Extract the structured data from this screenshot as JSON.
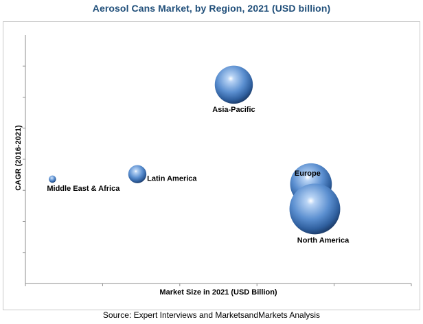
{
  "chart_data": {
    "type": "scatter",
    "title": "Aerosol Cans Market, by Region, 2021 (USD billion)",
    "xlabel": "Market Size in 2021 (USD Billion)",
    "ylabel": "CAGR (2016-2021)",
    "source": "Source: Expert Interviews and MarketsandMarkets Analysis",
    "bubble_color": "#4a7ab8",
    "grid": false,
    "ticks_labeled": false,
    "points": [
      {
        "label": "Asia-Pacific",
        "x": 0.54,
        "y": 0.8,
        "size": 0.21
      },
      {
        "label": "Middle East & Africa",
        "x": 0.07,
        "y": 0.42,
        "size": 0.04
      },
      {
        "label": "Latin America",
        "x": 0.29,
        "y": 0.44,
        "size": 0.1
      },
      {
        "label": "Europe",
        "x": 0.74,
        "y": 0.4,
        "size": 0.23
      },
      {
        "label": "North America",
        "x": 0.75,
        "y": 0.3,
        "size": 0.28
      }
    ]
  }
}
